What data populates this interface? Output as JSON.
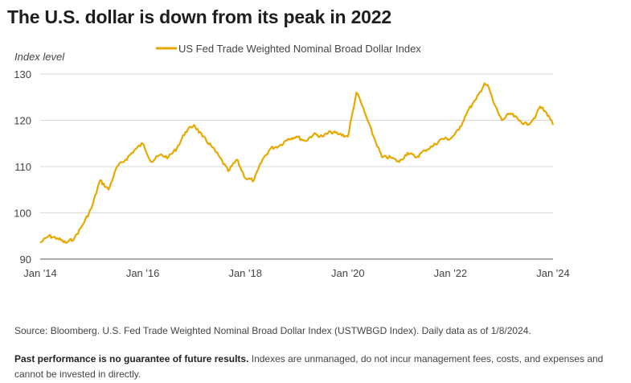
{
  "title": "The U.S. dollar is down from its peak in 2022",
  "chart_data": {
    "type": "line",
    "title": "The U.S. dollar is down from its peak in 2022",
    "ylabel": "Index level",
    "xlabel": "",
    "ylim": [
      90,
      130
    ],
    "xlim": [
      "2014-01",
      "2024-01"
    ],
    "grid": true,
    "legend_position": "top",
    "y_ticks": [
      "90",
      "100",
      "110",
      "120",
      "130"
    ],
    "x_ticks": [
      "Jan '14",
      "Jan '16",
      "Jan '18",
      "Jan '20",
      "Jan '22",
      "Jan '24"
    ],
    "series": [
      {
        "name": "US Fed Trade Weighted Nominal Broad Dollar Index",
        "color": "#e8a800",
        "x": [
          "2014-01",
          "2014-03",
          "2014-05",
          "2014-07",
          "2014-09",
          "2014-11",
          "2015-01",
          "2015-03",
          "2015-05",
          "2015-07",
          "2015-09",
          "2015-11",
          "2016-01",
          "2016-03",
          "2016-05",
          "2016-07",
          "2016-09",
          "2016-11",
          "2017-01",
          "2017-03",
          "2017-05",
          "2017-07",
          "2017-09",
          "2017-11",
          "2018-01",
          "2018-03",
          "2018-05",
          "2018-07",
          "2018-09",
          "2018-11",
          "2019-01",
          "2019-03",
          "2019-05",
          "2019-07",
          "2019-09",
          "2019-11",
          "2020-01",
          "2020-03",
          "2020-04",
          "2020-05",
          "2020-07",
          "2020-09",
          "2020-11",
          "2021-01",
          "2021-03",
          "2021-05",
          "2021-07",
          "2021-09",
          "2021-11",
          "2022-01",
          "2022-03",
          "2022-05",
          "2022-07",
          "2022-09",
          "2022-10",
          "2022-11",
          "2023-01",
          "2023-03",
          "2023-05",
          "2023-07",
          "2023-09",
          "2023-10",
          "2023-12",
          "2024-01"
        ],
        "y": [
          93.5,
          95,
          94.5,
          93.5,
          94.5,
          97.5,
          101,
          107,
          105,
          110,
          111.5,
          113.5,
          115,
          111,
          112.5,
          112,
          114,
          117.5,
          119,
          116.5,
          114.5,
          112,
          109,
          111.5,
          107.5,
          107,
          111.5,
          114,
          114.5,
          116,
          116.5,
          115.5,
          117,
          116.5,
          117.5,
          117,
          116.5,
          126,
          124,
          121.5,
          116.5,
          112,
          112,
          111,
          113,
          112,
          113.5,
          114.5,
          116,
          116,
          118,
          122,
          124.5,
          128,
          127,
          124,
          120,
          121.5,
          120,
          119,
          121,
          123,
          121,
          119
        ]
      }
    ]
  },
  "source": "Source: Bloomberg. U.S. Fed Trade Weighted Nominal Broad Dollar Index (USTWBGD Index). Daily data as of 1/8/2024.",
  "disclaimer_bold": "Past performance is no guarantee of future results.",
  "disclaimer_rest": " Indexes are unmanaged, do not incur management fees, costs, and expenses and cannot be invested in directly."
}
